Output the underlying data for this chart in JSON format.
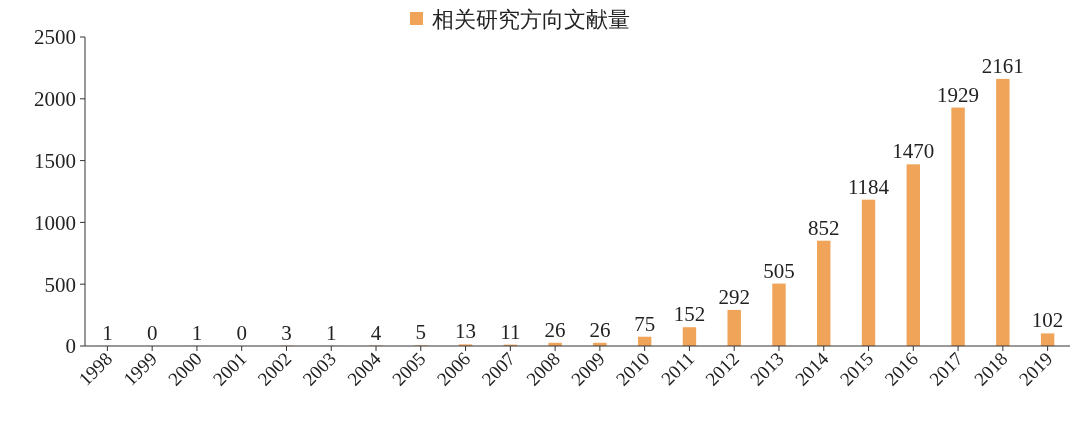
{
  "chart_data": {
    "type": "bar",
    "categories": [
      "1998",
      "1999",
      "2000",
      "2001",
      "2002",
      "2003",
      "2004",
      "2005",
      "2006",
      "2007",
      "2008",
      "2009",
      "2010",
      "2011",
      "2012",
      "2013",
      "2014",
      "2015",
      "2016",
      "2017",
      "2018",
      "2019"
    ],
    "series": [
      {
        "name": "相关研究方向文献量",
        "color": "#f0a45a",
        "values": [
          1,
          0,
          1,
          0,
          3,
          1,
          4,
          5,
          13,
          11,
          26,
          26,
          75,
          152,
          292,
          505,
          852,
          1184,
          1470,
          1929,
          2161,
          102
        ]
      }
    ],
    "ylim": [
      0,
      2500
    ],
    "yticks": [
      0,
      500,
      1000,
      1500,
      2000,
      2500
    ],
    "data_labels": true,
    "legend": "top",
    "grid": false
  }
}
